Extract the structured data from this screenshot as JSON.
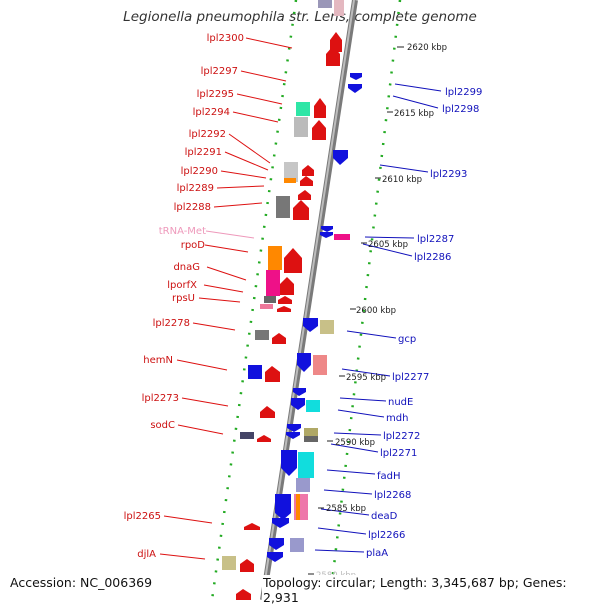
{
  "title": "Legionella pneumophila str. Lens, complete genome",
  "footer": {
    "accession": "Accession: NC_006369",
    "topology": "Topology: circular; Length: 3,345,687 bp; Genes: 2,931"
  },
  "colors": {
    "forward_label": "#cc1111",
    "reverse_label": "#1111bb",
    "trna_label": "#ee88bb",
    "backbone": "#888888",
    "tick": "#22aa22"
  },
  "left_labels": [
    "lpl2300",
    "lpl2297",
    "lpl2295",
    "lpl2294",
    "lpl2292",
    "lpl2291",
    "lpl2290",
    "lpl2289",
    "lpl2288",
    "tRNA-Met",
    "rpoD",
    "dnaG",
    "lporfX",
    "rpsU",
    "lpl2278",
    "hemN",
    "lpl2273",
    "sodC",
    "lpl2265",
    "djlA"
  ],
  "right_labels": [
    "lpl2299",
    "lpl2298",
    "lpl2293",
    "lpl2287",
    "lpl2286",
    "gcp",
    "lpl2277",
    "nudE",
    "mdh",
    "lpl2272",
    "lpl2271",
    "fadH",
    "lpl2268",
    "deaD",
    "lpl2266",
    "plaA"
  ],
  "kbp_labels": [
    "2620 kbp",
    "2615 kbp",
    "2610 kbp",
    "2605 kbp",
    "2600 kbp",
    "2595 kbp",
    "2590 kbp",
    "2585 kbp",
    "2580 kbp"
  ]
}
